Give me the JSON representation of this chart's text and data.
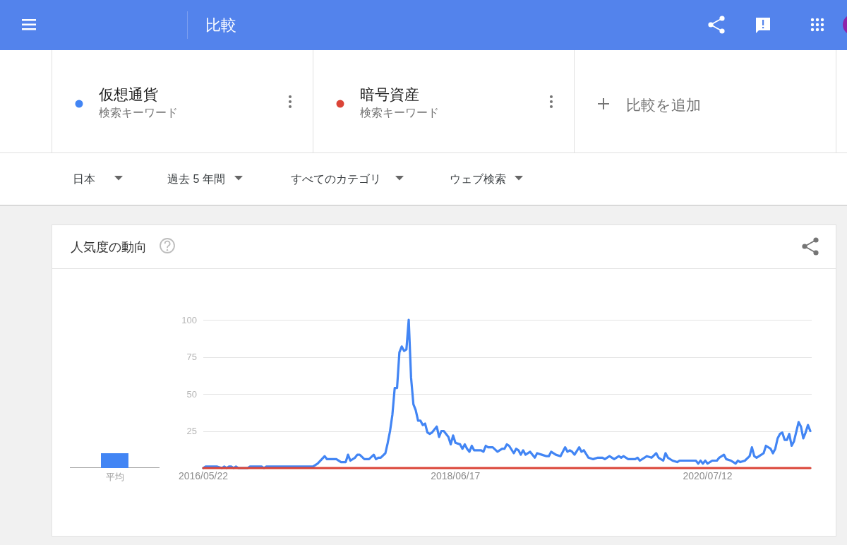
{
  "chart_data": [
    {
      "type": "other",
      "title": "比較",
      "annotations": [
        "検索キーワード",
        "検索キーワード",
        "比較を追加",
        "日本",
        "過去 5 年間",
        "すべてのカテゴリ",
        "ウェブ検索"
      ]
    },
    {
      "type": "bar",
      "title": "人気度の動向",
      "categories": [
        "平均"
      ],
      "values": [
        10
      ],
      "color": "#4285f4",
      "ylim": [
        0,
        100
      ],
      "tick_labels": "x"
    },
    {
      "type": "line",
      "series": [
        {
          "name": "仮想通貨",
          "color": "#4285f4",
          "x": [
            "2016-05-22",
            "2016-05-29",
            "2016-07-03",
            "2016-07-17",
            "2016-07-24",
            "2016-07-31",
            "2016-08-07",
            "2016-08-14",
            "2016-08-21",
            "2016-08-28",
            "2016-09-04",
            "2016-10-02",
            "2016-10-09",
            "2016-11-13",
            "2016-11-20",
            "2016-11-27",
            "2017-04-16",
            "2017-04-30",
            "2017-05-21",
            "2017-05-28",
            "2017-06-25",
            "2017-07-09",
            "2017-07-23",
            "2017-07-30",
            "2017-08-06",
            "2017-08-20",
            "2017-08-27",
            "2017-09-03",
            "2017-09-17",
            "2017-10-01",
            "2017-10-15",
            "2017-10-22",
            "2017-10-29",
            "2017-11-05",
            "2017-11-19",
            "2017-11-26",
            "2017-12-03",
            "2017-12-10",
            "2017-12-17",
            "2017-12-24",
            "2017-12-31",
            "2018-01-07",
            "2018-01-14",
            "2018-01-21",
            "2018-01-28",
            "2018-02-04",
            "2018-02-11",
            "2018-02-18",
            "2018-02-25",
            "2018-03-04",
            "2018-03-11",
            "2018-03-18",
            "2018-03-25",
            "2018-04-01",
            "2018-04-08",
            "2018-04-22",
            "2018-04-29",
            "2018-05-06",
            "2018-05-13",
            "2018-05-27",
            "2018-06-03",
            "2018-06-10",
            "2018-06-17",
            "2018-07-01",
            "2018-07-08",
            "2018-07-15",
            "2018-07-22",
            "2018-07-29",
            "2018-08-05",
            "2018-08-12",
            "2018-08-26",
            "2018-09-02",
            "2018-09-09",
            "2018-09-16",
            "2018-09-23",
            "2018-10-07",
            "2018-10-21",
            "2018-11-04",
            "2018-11-11",
            "2018-11-18",
            "2018-11-25",
            "2018-12-09",
            "2018-12-16",
            "2018-12-23",
            "2018-12-30",
            "2019-01-06",
            "2019-01-13",
            "2019-01-27",
            "2019-02-10",
            "2019-02-17",
            "2019-03-03",
            "2019-03-17",
            "2019-03-24",
            "2019-03-31",
            "2019-04-14",
            "2019-04-28",
            "2019-05-12",
            "2019-05-19",
            "2019-05-26",
            "2019-06-02",
            "2019-06-09",
            "2019-06-23",
            "2019-06-30",
            "2019-07-07",
            "2019-07-21",
            "2019-08-04",
            "2019-08-18",
            "2019-09-01",
            "2019-09-08",
            "2019-09-22",
            "2019-10-06",
            "2019-10-20",
            "2019-10-27",
            "2019-11-03",
            "2019-11-17",
            "2019-12-08",
            "2019-12-15",
            "2019-12-22",
            "2020-01-12",
            "2020-01-26",
            "2020-02-09",
            "2020-02-16",
            "2020-03-01",
            "2020-03-08",
            "2020-03-15",
            "2020-03-29",
            "2020-04-12",
            "2020-04-19",
            "2020-05-03",
            "2020-06-07",
            "2020-06-14",
            "2020-06-21",
            "2020-06-28",
            "2020-07-05",
            "2020-07-12",
            "2020-07-26",
            "2020-08-09",
            "2020-08-16",
            "2020-08-30",
            "2020-09-06",
            "2020-09-20",
            "2020-10-04",
            "2020-10-11",
            "2020-10-18",
            "2020-11-01",
            "2020-11-15",
            "2020-11-22",
            "2020-11-29",
            "2020-12-06",
            "2020-12-20",
            "2020-12-27",
            "2021-01-03",
            "2021-01-17",
            "2021-01-24",
            "2021-01-31",
            "2021-02-07",
            "2021-02-14",
            "2021-02-21",
            "2021-02-28",
            "2021-03-07",
            "2021-03-14",
            "2021-03-21",
            "2021-03-28",
            "2021-04-11",
            "2021-04-18",
            "2021-04-25",
            "2021-05-02",
            "2021-05-09",
            "2021-05-16"
          ],
          "values": [
            0,
            1,
            1,
            0,
            1,
            0,
            1,
            1,
            0,
            1,
            0,
            0,
            1,
            1,
            0,
            1,
            1,
            3,
            8,
            6,
            6,
            4,
            4,
            9,
            5,
            7,
            9,
            9,
            6,
            6,
            9,
            6,
            7,
            7,
            10,
            17,
            25,
            36,
            54,
            54,
            78,
            82,
            79,
            80,
            100,
            61,
            43,
            39,
            32,
            32,
            29,
            30,
            24,
            23,
            24,
            28,
            21,
            25,
            25,
            21,
            16,
            22,
            17,
            16,
            13,
            16,
            13,
            11,
            15,
            12,
            12,
            12,
            11,
            15,
            14,
            14,
            11,
            13,
            13,
            16,
            15,
            10,
            13,
            12,
            9,
            12,
            9,
            11,
            7,
            10,
            9,
            8,
            8,
            11,
            9,
            8,
            14,
            11,
            12,
            11,
            9,
            14,
            11,
            12,
            7,
            6,
            7,
            7,
            6,
            8,
            6,
            8,
            7,
            8,
            6,
            6,
            7,
            5,
            8,
            7,
            10,
            7,
            5,
            10,
            7,
            5,
            4,
            5,
            5,
            5,
            3,
            5,
            3,
            5,
            3,
            5,
            5,
            7,
            9,
            6,
            5,
            3,
            5,
            4,
            5,
            8,
            14,
            8,
            7,
            9,
            10,
            15,
            13,
            10,
            13,
            20,
            23,
            24,
            19,
            19,
            23,
            15,
            18,
            31,
            28,
            20,
            24,
            29,
            25
          ]
        },
        {
          "name": "暗号資産",
          "color": "#db4437",
          "x": [
            "2016-05-22",
            "2021-05-16"
          ],
          "values": [
            0,
            0
          ]
        }
      ],
      "xlim": [
        "2016-05-22",
        "2021-05-16"
      ],
      "xticks": [
        {
          "value": "2016-05-22",
          "label": "2016/05/22"
        },
        {
          "value": "2018-06-17",
          "label": "2018/06/17"
        },
        {
          "value": "2020-07-12",
          "label": "2020/07/12"
        }
      ],
      "ylim": [
        0,
        100
      ],
      "yticks": [
        25,
        50,
        75,
        100
      ],
      "grid": "y",
      "legend": "top"
    }
  ]
}
